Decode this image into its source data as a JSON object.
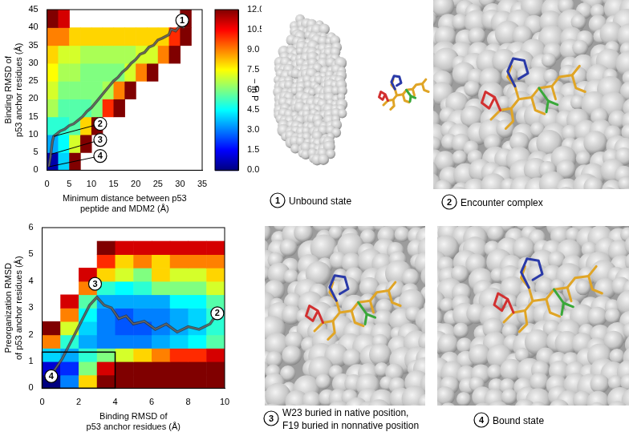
{
  "chart_data": [
    {
      "type": "heatmap",
      "x_label": [
        "Minimum distance between p53",
        "peptide and MDM2 (Å)"
      ],
      "y_label": [
        "Binding RMSD of",
        "p53 anchor residues (Å)"
      ],
      "xlim": [
        0,
        35
      ],
      "xticks": [
        0,
        5,
        10,
        15,
        20,
        25,
        30,
        35
      ],
      "ylim": [
        0,
        45
      ],
      "yticks": [
        0,
        5,
        10,
        15,
        20,
        25,
        30,
        35,
        40,
        45
      ],
      "grid": false,
      "zlim": [
        0,
        12
      ],
      "colorbar": {
        "label": "− ln P",
        "ticks": [
          {
            "value": 0,
            "label": "0.0"
          },
          1.5,
          {
            "value": 3,
            "label": "3.0"
          },
          4.5,
          {
            "value": 6,
            "label": "6.0"
          },
          7.5,
          {
            "value": 9,
            "label": "9.0"
          },
          10.5,
          {
            "value": 12,
            "label": "12.0"
          }
        ]
      },
      "cells": {
        "x_edges": [
          0,
          2.5,
          5,
          7.5,
          10,
          12.5,
          15,
          17.5,
          20,
          22.5,
          25,
          27.5,
          30,
          32.5,
          35
        ],
        "y_edges": [
          0,
          5,
          10,
          15,
          20,
          25,
          30,
          35,
          40,
          45
        ],
        "values": [
          [
            0.5,
            4,
            12,
            null,
            null,
            null,
            null,
            null,
            null,
            null,
            null,
            null,
            null,
            null
          ],
          [
            3.5,
            4.5,
            7,
            12,
            null,
            null,
            null,
            null,
            null,
            null,
            null,
            null,
            null,
            null
          ],
          [
            5,
            5,
            5.5,
            8,
            12,
            null,
            null,
            null,
            null,
            null,
            null,
            null,
            null,
            null
          ],
          [
            6.5,
            5.5,
            5.5,
            5.5,
            6,
            10,
            12,
            null,
            null,
            null,
            null,
            null,
            null,
            null
          ],
          [
            7,
            6,
            6,
            6,
            6,
            6.5,
            9,
            12,
            null,
            null,
            null,
            null,
            null,
            null
          ],
          [
            7.5,
            6.5,
            6.5,
            6,
            6,
            6,
            6,
            7,
            9,
            12,
            null,
            null,
            null,
            null
          ],
          [
            8,
            7,
            7,
            6.5,
            6.5,
            6.5,
            6.5,
            6.5,
            7,
            7,
            9,
            12,
            null,
            null
          ],
          [
            9,
            9,
            8,
            8,
            8,
            8,
            8,
            8,
            8,
            8,
            8,
            10,
            12,
            null
          ],
          [
            12,
            11,
            null,
            null,
            null,
            null,
            null,
            null,
            null,
            null,
            null,
            null,
            12,
            null
          ]
        ]
      },
      "trajectory": {
        "color": "#ffffff",
        "x": [
          31,
          30,
          29,
          28,
          27.5,
          26,
          25,
          24,
          23,
          22,
          21,
          20,
          19,
          18,
          17,
          16,
          15,
          14,
          13,
          12,
          11,
          10,
          9,
          8,
          7,
          6,
          5,
          4,
          3,
          2.5,
          2,
          1.5,
          1.2,
          1,
          0.8,
          0.6,
          0.4
        ],
        "y": [
          40,
          40.5,
          39,
          39.5,
          38,
          37,
          36.5,
          35,
          34.5,
          33,
          32.5,
          31,
          30,
          28.5,
          27.5,
          26,
          25,
          23.5,
          22,
          20.5,
          19,
          17.5,
          16.5,
          15,
          14,
          13,
          12.5,
          11.5,
          11,
          10.5,
          10,
          9.5,
          8,
          6,
          4,
          2.5,
          1
        ]
      },
      "states": [
        {
          "label": "1",
          "x": 30.5,
          "y": 42
        },
        {
          "label": "2",
          "x": 12,
          "y": 13,
          "to_x": 1.5,
          "to_y": 9.5
        },
        {
          "label": "3",
          "x": 12,
          "y": 8.5,
          "to_x": 1,
          "to_y": 4.5
        },
        {
          "label": "4",
          "x": 12,
          "y": 4,
          "to_x": 0.5,
          "to_y": 1
        }
      ]
    },
    {
      "type": "heatmap",
      "x_label": [
        "Binding RMSD of",
        "p53 anchor residues (Å)"
      ],
      "y_label": [
        "Preorganization RMSD",
        "of p53 anchor residues (Å)"
      ],
      "xlim": [
        0,
        10
      ],
      "xticks": [
        0,
        2,
        4,
        6,
        8,
        10
      ],
      "ylim": [
        0,
        6
      ],
      "yticks": [
        0,
        1,
        2,
        3,
        4,
        5,
        6
      ],
      "grid": false,
      "zlim": [
        0,
        12
      ],
      "cells": {
        "x_edges": [
          0,
          1,
          2,
          3,
          4,
          5,
          6,
          7,
          8,
          9,
          10
        ],
        "y_edges": [
          0,
          0.5,
          1,
          1.5,
          2,
          2.5,
          3,
          3.5,
          4,
          4.5,
          5,
          5.5,
          6
        ],
        "values": [
          [
            0,
            3,
            8,
            12,
            12,
            12,
            12,
            12,
            12,
            12
          ],
          [
            1,
            2,
            6,
            11,
            12,
            12,
            12,
            12,
            12,
            12
          ],
          [
            4,
            3.5,
            5,
            6,
            7,
            8,
            9,
            10,
            10,
            11
          ],
          [
            9,
            5,
            3.5,
            3,
            3,
            3,
            3.5,
            4,
            4.5,
            5.5
          ],
          [
            12,
            7,
            4,
            3,
            2.5,
            2.5,
            3,
            3.5,
            4,
            5
          ],
          [
            null,
            9,
            4.5,
            3,
            2.5,
            3,
            3,
            3.5,
            4,
            5
          ],
          [
            null,
            11,
            5.5,
            3.5,
            3.5,
            3.5,
            3.5,
            4.5,
            4.5,
            5.5
          ],
          [
            null,
            null,
            9,
            5,
            4.5,
            5,
            6,
            6,
            6,
            7
          ],
          [
            null,
            null,
            11,
            8,
            7,
            6,
            8,
            7,
            7,
            8
          ],
          [
            null,
            null,
            null,
            10,
            8,
            9,
            8,
            9,
            9,
            9
          ],
          [
            null,
            null,
            null,
            12,
            11,
            11,
            11,
            11,
            11,
            11
          ],
          [
            null,
            null,
            null,
            null,
            null,
            null,
            null,
            null,
            null,
            null
          ]
        ]
      },
      "box": {
        "x": [
          0,
          4
        ],
        "y": [
          0,
          1.35
        ]
      },
      "trajectory": {
        "color": "#ffffff",
        "x": [
          9.6,
          9.2,
          8.6,
          8.0,
          7.4,
          6.8,
          6.2,
          5.6,
          5.0,
          4.6,
          4.2,
          3.8,
          3.4,
          3.0,
          2.6,
          2.3,
          2.0,
          1.7,
          1.4,
          1.1,
          0.8,
          0.5,
          0.3
        ],
        "y": [
          2.8,
          2.4,
          2.2,
          2.3,
          2.1,
          2.4,
          2.2,
          2.5,
          2.4,
          2.7,
          2.6,
          3.0,
          3.1,
          3.4,
          3.1,
          2.7,
          2.3,
          1.9,
          1.5,
          1.1,
          0.8,
          0.5,
          0.3
        ]
      },
      "states": [
        {
          "label": "2",
          "x": 9.6,
          "y": 2.8
        },
        {
          "label": "3",
          "x": 2.9,
          "y": 3.9
        },
        {
          "label": "4",
          "x": 0.5,
          "y": 0.45
        }
      ]
    }
  ],
  "panels": [
    {
      "state": "1",
      "label": [
        "Unbound state"
      ]
    },
    {
      "state": "2",
      "label": [
        "Encounter complex"
      ]
    },
    {
      "state": "3",
      "label": [
        "W23 buried in native position,",
        "F19 buried in nonnative position"
      ]
    },
    {
      "state": "4",
      "label": [
        "Bound state"
      ]
    }
  ]
}
